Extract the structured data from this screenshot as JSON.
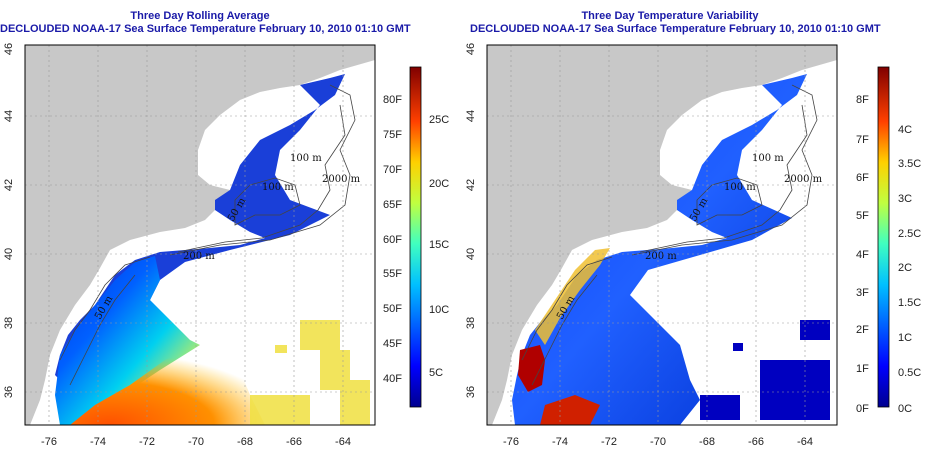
{
  "panels": [
    {
      "title_line1": "Three Day Rolling Average",
      "title_line2": "DECLOUDED NOAA-17 Sea Surface Temperature February 10, 2010 01:10 GMT",
      "x_ticks": [
        "-76",
        "-74",
        "-72",
        "-70",
        "-68",
        "-66",
        "-64"
      ],
      "y_ticks": [
        "36",
        "38",
        "40",
        "42",
        "44",
        "46"
      ],
      "depth_labels": [
        "100 m",
        "100 m",
        "2000 m",
        "50 m",
        "200 m",
        "50 m"
      ],
      "colorbar_f": [
        "80F",
        "75F",
        "70F",
        "65F",
        "60F",
        "55F",
        "50F",
        "45F",
        "40F"
      ],
      "colorbar_c": [
        "25C",
        "20C",
        "15C",
        "10C",
        "5C"
      ]
    },
    {
      "title_line1": "Three Day Temperature Variability",
      "title_line2": "DECLOUDED NOAA-17 Sea Surface Temperature February 10, 2010 01:10 GMT",
      "x_ticks": [
        "-76",
        "-74",
        "-72",
        "-70",
        "-68",
        "-66",
        "-64"
      ],
      "y_ticks": [
        "36",
        "38",
        "40",
        "42",
        "44",
        "46"
      ],
      "depth_labels": [
        "100 m",
        "100 m",
        "2000 m",
        "50 m",
        "200 m",
        "50 m"
      ],
      "colorbar_f": [
        "8F",
        "7F",
        "6F",
        "5F",
        "4F",
        "3F",
        "2F",
        "1F",
        "0F"
      ],
      "colorbar_c": [
        "4C",
        "3.5C",
        "3C",
        "2.5C",
        "2C",
        "1.5C",
        "1C",
        "0.5C",
        "0C"
      ]
    }
  ],
  "colors": {
    "land": "#c8c8c8",
    "title": "#1a1aa8",
    "colormap": [
      "#00008f",
      "#0000ff",
      "#0080ff",
      "#00ffff",
      "#80ff80",
      "#ffff00",
      "#ff8000",
      "#ff0000",
      "#800000"
    ]
  }
}
